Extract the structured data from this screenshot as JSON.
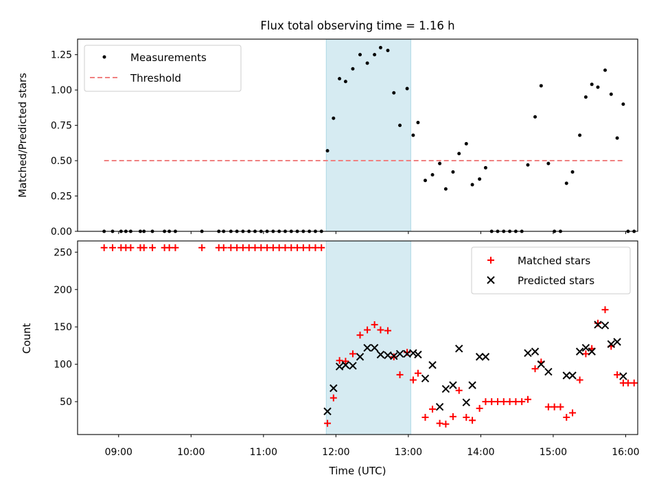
{
  "chart_data": [
    {
      "type": "scatter",
      "title": "Flux total observing time = 1.16 h",
      "xlabel": "",
      "ylabel": "Matched/Predicted stars",
      "xlim": [
        "08:26",
        "16:10"
      ],
      "ylim": [
        0,
        1.36
      ],
      "yticks": [
        "0.00",
        "0.25",
        "0.50",
        "0.75",
        "1.00",
        "1.25"
      ],
      "shaded_region": [
        "11:52",
        "13:02"
      ],
      "shade_color": "#add8e6",
      "legend": [
        "Measurements",
        "Threshold"
      ],
      "legend_position": "upper-left",
      "threshold": {
        "value": 0.5,
        "x_start": "08:48",
        "x_end": "15:58",
        "color": "#f08080"
      },
      "series": [
        {
          "name": "Measurements",
          "color": "#000000",
          "points": [
            [
              "08:48",
              0
            ],
            [
              "08:55",
              0
            ],
            [
              "09:02",
              0
            ],
            [
              "09:06",
              0
            ],
            [
              "09:10",
              0
            ],
            [
              "09:18",
              0
            ],
            [
              "09:21",
              0
            ],
            [
              "09:28",
              0
            ],
            [
              "09:38",
              0
            ],
            [
              "09:42",
              0
            ],
            [
              "09:47",
              0
            ],
            [
              "10:09",
              0
            ],
            [
              "10:23",
              0
            ],
            [
              "10:27",
              0
            ],
            [
              "10:33",
              0
            ],
            [
              "10:38",
              0
            ],
            [
              "10:43",
              0
            ],
            [
              "10:48",
              0
            ],
            [
              "10:53",
              0
            ],
            [
              "10:58",
              0
            ],
            [
              "11:03",
              0
            ],
            [
              "11:08",
              0
            ],
            [
              "11:13",
              0
            ],
            [
              "11:18",
              0
            ],
            [
              "11:23",
              0
            ],
            [
              "11:28",
              0
            ],
            [
              "11:33",
              0
            ],
            [
              "11:38",
              0
            ],
            [
              "11:43",
              0
            ],
            [
              "11:48",
              0
            ],
            [
              "11:53",
              0.57
            ],
            [
              "11:58",
              0.8
            ],
            [
              "12:03",
              1.08
            ],
            [
              "12:08",
              1.06
            ],
            [
              "12:14",
              1.15
            ],
            [
              "12:20",
              1.25
            ],
            [
              "12:26",
              1.19
            ],
            [
              "12:32",
              1.25
            ],
            [
              "12:37",
              1.3
            ],
            [
              "12:43",
              1.28
            ],
            [
              "12:48",
              0.98
            ],
            [
              "12:53",
              0.75
            ],
            [
              "12:59",
              1.01
            ],
            [
              "13:04",
              0.68
            ],
            [
              "13:08",
              0.77
            ],
            [
              "13:14",
              0.36
            ],
            [
              "13:20",
              0.4
            ],
            [
              "13:26",
              0.48
            ],
            [
              "13:31",
              0.3
            ],
            [
              "13:37",
              0.42
            ],
            [
              "13:42",
              0.55
            ],
            [
              "13:48",
              0.62
            ],
            [
              "13:53",
              0.33
            ],
            [
              "13:59",
              0.37
            ],
            [
              "14:04",
              0.45
            ],
            [
              "14:09",
              0
            ],
            [
              "14:14",
              0
            ],
            [
              "14:19",
              0
            ],
            [
              "14:24",
              0
            ],
            [
              "14:29",
              0
            ],
            [
              "14:34",
              0
            ],
            [
              "14:39",
              0.47
            ],
            [
              "14:45",
              0.81
            ],
            [
              "14:50",
              1.03
            ],
            [
              "14:56",
              0.48
            ],
            [
              "15:01",
              0
            ],
            [
              "15:06",
              0
            ],
            [
              "15:11",
              0.34
            ],
            [
              "15:16",
              0.42
            ],
            [
              "15:22",
              0.68
            ],
            [
              "15:27",
              0.95
            ],
            [
              "15:32",
              1.04
            ],
            [
              "15:37",
              1.02
            ],
            [
              "15:43",
              1.14
            ],
            [
              "15:48",
              0.97
            ],
            [
              "15:53",
              0.66
            ],
            [
              "15:58",
              0.9
            ],
            [
              "16:02",
              0
            ],
            [
              "16:07",
              0
            ]
          ]
        }
      ]
    },
    {
      "type": "scatter",
      "title": "",
      "xlabel": "Time (UTC)",
      "ylabel": "Count",
      "xlim": [
        "08:26",
        "16:10"
      ],
      "ylim": [
        6,
        265
      ],
      "yticks": [
        "50",
        "100",
        "150",
        "200",
        "250"
      ],
      "xticks": [
        "09:00",
        "10:00",
        "11:00",
        "12:00",
        "13:00",
        "14:00",
        "15:00",
        "16:00"
      ],
      "shaded_region": [
        "11:52",
        "13:02"
      ],
      "legend": [
        "Matched stars",
        "Predicted stars"
      ],
      "legend_position": "upper-right",
      "series": [
        {
          "name": "Matched stars",
          "marker": "+",
          "color": "#ff0000",
          "points": [
            [
              "08:48",
              256
            ],
            [
              "08:55",
              256
            ],
            [
              "09:02",
              256
            ],
            [
              "09:06",
              256
            ],
            [
              "09:10",
              256
            ],
            [
              "09:18",
              256
            ],
            [
              "09:21",
              256
            ],
            [
              "09:28",
              256
            ],
            [
              "09:38",
              256
            ],
            [
              "09:42",
              256
            ],
            [
              "09:47",
              256
            ],
            [
              "10:09",
              256
            ],
            [
              "10:23",
              256
            ],
            [
              "10:27",
              256
            ],
            [
              "10:33",
              256
            ],
            [
              "10:38",
              256
            ],
            [
              "10:43",
              256
            ],
            [
              "10:48",
              256
            ],
            [
              "10:53",
              256
            ],
            [
              "10:58",
              256
            ],
            [
              "11:03",
              256
            ],
            [
              "11:08",
              256
            ],
            [
              "11:13",
              256
            ],
            [
              "11:18",
              256
            ],
            [
              "11:23",
              256
            ],
            [
              "11:28",
              256
            ],
            [
              "11:33",
              256
            ],
            [
              "11:38",
              256
            ],
            [
              "11:43",
              256
            ],
            [
              "11:48",
              256
            ],
            [
              "11:53",
              21
            ],
            [
              "11:58",
              55
            ],
            [
              "12:03",
              105
            ],
            [
              "12:08",
              104
            ],
            [
              "12:14",
              114
            ],
            [
              "12:20",
              139
            ],
            [
              "12:26",
              146
            ],
            [
              "12:32",
              153
            ],
            [
              "12:37",
              146
            ],
            [
              "12:43",
              145
            ],
            [
              "12:48",
              110
            ],
            [
              "12:53",
              86
            ],
            [
              "12:59",
              116
            ],
            [
              "13:04",
              79
            ],
            [
              "13:08",
              88
            ],
            [
              "13:14",
              29
            ],
            [
              "13:20",
              40
            ],
            [
              "13:26",
              21
            ],
            [
              "13:31",
              20
            ],
            [
              "13:37",
              30
            ],
            [
              "13:42",
              65
            ],
            [
              "13:48",
              29
            ],
            [
              "13:53",
              25
            ],
            [
              "13:59",
              41
            ],
            [
              "14:04",
              50
            ],
            [
              "14:09",
              50
            ],
            [
              "14:14",
              50
            ],
            [
              "14:19",
              50
            ],
            [
              "14:24",
              50
            ],
            [
              "14:29",
              50
            ],
            [
              "14:34",
              50
            ],
            [
              "14:39",
              53
            ],
            [
              "14:45",
              94
            ],
            [
              "14:50",
              103
            ],
            [
              "14:56",
              43
            ],
            [
              "15:01",
              43
            ],
            [
              "15:06",
              43
            ],
            [
              "15:11",
              29
            ],
            [
              "15:16",
              35
            ],
            [
              "15:22",
              79
            ],
            [
              "15:27",
              114
            ],
            [
              "15:32",
              121
            ],
            [
              "15:37",
              155
            ],
            [
              "15:43",
              173
            ],
            [
              "15:48",
              124
            ],
            [
              "15:53",
              86
            ],
            [
              "15:58",
              75
            ],
            [
              "16:02",
              75
            ],
            [
              "16:07",
              75
            ]
          ]
        },
        {
          "name": "Predicted stars",
          "marker": "x",
          "color": "#000000",
          "points": [
            [
              "11:53",
              37
            ],
            [
              "11:58",
              68
            ],
            [
              "12:03",
              97
            ],
            [
              "12:08",
              99
            ],
            [
              "12:14",
              98
            ],
            [
              "12:20",
              110
            ],
            [
              "12:26",
              122
            ],
            [
              "12:32",
              122
            ],
            [
              "12:37",
              113
            ],
            [
              "12:43",
              112
            ],
            [
              "12:48",
              111
            ],
            [
              "12:53",
              114
            ],
            [
              "12:59",
              114
            ],
            [
              "13:04",
              115
            ],
            [
              "13:08",
              113
            ],
            [
              "13:14",
              81
            ],
            [
              "13:20",
              99
            ],
            [
              "13:26",
              43
            ],
            [
              "13:31",
              67
            ],
            [
              "13:37",
              72
            ],
            [
              "13:42",
              121
            ],
            [
              "13:48",
              49
            ],
            [
              "13:53",
              72
            ],
            [
              "13:59",
              110
            ],
            [
              "14:04",
              110
            ],
            [
              "14:39",
              115
            ],
            [
              "14:45",
              117
            ],
            [
              "14:50",
              100
            ],
            [
              "14:56",
              90
            ],
            [
              "15:11",
              85
            ],
            [
              "15:16",
              85
            ],
            [
              "15:22",
              117
            ],
            [
              "15:27",
              122
            ],
            [
              "15:32",
              117
            ],
            [
              "15:37",
              153
            ],
            [
              "15:43",
              152
            ],
            [
              "15:48",
              127
            ],
            [
              "15:53",
              130
            ],
            [
              "15:58",
              84
            ]
          ]
        }
      ]
    }
  ]
}
